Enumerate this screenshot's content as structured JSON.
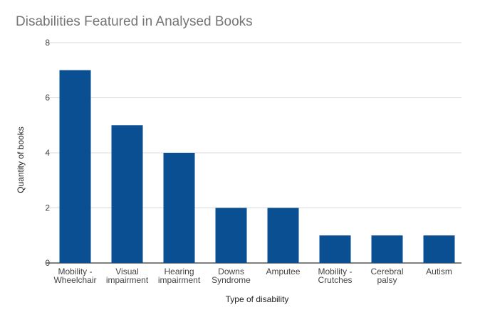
{
  "chart_data": {
    "type": "bar",
    "title": "Disabilities Featured in Analysed Books",
    "xlabel": "Type of disability",
    "ylabel": "Quantity of books",
    "categories": [
      [
        "Mobility -",
        "Wheelchair"
      ],
      [
        "Visual",
        "impairment"
      ],
      [
        "Hearing",
        "impairment"
      ],
      [
        "Downs",
        "Syndrome"
      ],
      [
        "Amputee"
      ],
      [
        "Mobility -",
        "Crutches"
      ],
      [
        "Cerebral",
        "palsy"
      ],
      [
        "Autism"
      ]
    ],
    "values": [
      7,
      5,
      4,
      2,
      2,
      1,
      1,
      1
    ],
    "yticks": [
      0,
      2,
      4,
      6,
      8
    ],
    "ylim": [
      0,
      8
    ],
    "grid": true,
    "legend": "none",
    "colors": {
      "bar": "#0b4f93",
      "grid": "#d9d9d9",
      "baseline": "#333333"
    }
  }
}
